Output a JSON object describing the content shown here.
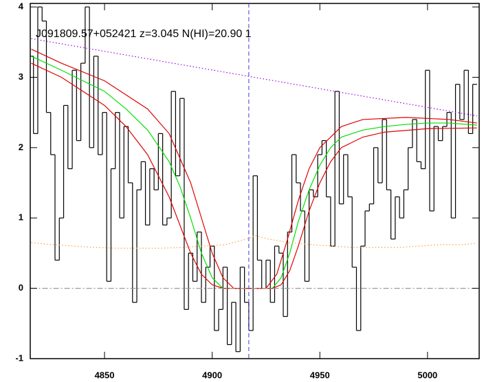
{
  "chart_data": {
    "type": "line",
    "title": "J091809.57+052421 z=3.045 N(HI)=20.90 1",
    "xlim": [
      4815.5,
      5024
    ],
    "ylim": [
      -1,
      4.05
    ],
    "xticks": [
      4850,
      4900,
      4950,
      5000
    ],
    "yticks": [
      -1,
      0,
      1,
      2,
      3,
      4
    ],
    "vline": {
      "x": 4917,
      "color": "#3a3adf",
      "dash": "dashed"
    },
    "series": [
      {
        "color": "#000000",
        "step": true,
        "x": [
          4816,
          4818,
          4820,
          4822,
          4824,
          4826,
          4828,
          4830,
          4832,
          4834,
          4836,
          4838,
          4840,
          4842,
          4844,
          4846,
          4848,
          4850,
          4852,
          4854,
          4856,
          4858,
          4860,
          4862,
          4864,
          4866,
          4868,
          4870,
          4872,
          4874,
          4876,
          4878,
          4880,
          4882,
          4884,
          4886,
          4888,
          4890,
          4892,
          4894,
          4896,
          4898,
          4900,
          4902,
          4904,
          4906,
          4908,
          4910,
          4912,
          4914,
          4916,
          4918,
          4920,
          4922,
          4924,
          4926,
          4928,
          4930,
          4932,
          4934,
          4936,
          4938,
          4940,
          4942,
          4944,
          4946,
          4948,
          4950,
          4952,
          4954,
          4956,
          4958,
          4960,
          4962,
          4964,
          4966,
          4968,
          4970,
          4972,
          4974,
          4976,
          4978,
          4980,
          4982,
          4984,
          4986,
          4988,
          4990,
          4992,
          4994,
          4996,
          4998,
          5000,
          5002,
          5004,
          5006,
          5008,
          5010,
          5012,
          5014,
          5016,
          5018,
          5020,
          5022
        ],
        "values": [
          3.3,
          2.2,
          4.0,
          3.8,
          2.5,
          1.9,
          0.4,
          1.0,
          2.6,
          1.7,
          3.1,
          2.1,
          3.2,
          4.0,
          2.0,
          3.3,
          1.9,
          2.5,
          0.1,
          1.7,
          2.5,
          1.0,
          2.3,
          1.5,
          -0.2,
          1.4,
          1.8,
          0.9,
          1.7,
          1.4,
          2.2,
          0.9,
          1.0,
          2.8,
          1.6,
          2.7,
          -0.3,
          0.5,
          0.1,
          0.8,
          -0.2,
          0.3,
          0.6,
          -0.6,
          -0.3,
          0.3,
          -0.8,
          -0.2,
          -0.9,
          0.3,
          -0.2,
          -0.6,
          1.6,
          0.4,
          0.0,
          0.4,
          -0.2,
          0.6,
          0.5,
          -0.4,
          0.8,
          1.9,
          1.5,
          1.1,
          0.1,
          1.4,
          1.3,
          1.9,
          2.1,
          1.3,
          0.6,
          2.8,
          1.2,
          1.9,
          1.3,
          0.3,
          -0.6,
          0.6,
          1.1,
          1.2,
          2.0,
          1.5,
          2.4,
          1.4,
          0.7,
          1.3,
          1.0,
          1.4,
          2.0,
          2.4,
          1.8,
          1.7,
          3.1,
          1.1,
          2.3,
          2.1,
          2.3,
          2.5,
          1.0,
          2.9,
          2.4,
          3.1,
          2.2,
          2.9
        ]
      },
      {
        "color": "#00e000",
        "x": [
          4816,
          4830,
          4840,
          4850,
          4860,
          4870,
          4880,
          4885,
          4890,
          4895,
          4900,
          4905,
          4910,
          4920,
          4928,
          4932,
          4936,
          4940,
          4945,
          4950,
          4955,
          4960,
          4970,
          4980,
          4990,
          5000,
          5010,
          5023
        ],
        "values": [
          3.3,
          3.1,
          2.95,
          2.8,
          2.55,
          2.25,
          1.8,
          1.45,
          1.0,
          0.5,
          0.15,
          0,
          0,
          0,
          0,
          0.15,
          0.5,
          0.95,
          1.4,
          1.75,
          2.0,
          2.15,
          2.25,
          2.3,
          2.33,
          2.35,
          2.35,
          2.32
        ]
      },
      {
        "color": "#e00000",
        "x": [
          4816,
          4830,
          4850,
          4870,
          4880,
          4890,
          4895,
          4900,
          4905,
          4910,
          4925,
          4930,
          4935,
          4940,
          4945,
          4950,
          4960,
          4970,
          4990,
          5010,
          5023
        ],
        "values": [
          3.4,
          3.2,
          2.95,
          2.55,
          2.2,
          1.5,
          1.0,
          0.5,
          0.15,
          0,
          0,
          0.2,
          0.7,
          1.25,
          1.7,
          2.0,
          2.3,
          2.4,
          2.43,
          2.4,
          2.35
        ]
      },
      {
        "color": "#e00000",
        "x": [
          4816,
          4830,
          4850,
          4860,
          4870,
          4880,
          4885,
          4890,
          4895,
          4900,
          4905,
          4928,
          4932,
          4936,
          4940,
          4945,
          4950,
          4955,
          4960,
          4970,
          4980,
          5000,
          5023
        ],
        "values": [
          3.2,
          3.0,
          2.6,
          2.3,
          1.9,
          1.3,
          0.9,
          0.5,
          0.2,
          0.05,
          0,
          0,
          0.05,
          0.25,
          0.6,
          1.1,
          1.5,
          1.8,
          2.0,
          2.15,
          2.22,
          2.27,
          2.28
        ]
      },
      {
        "color": "#9a00e6",
        "dash": "dotted",
        "x": [
          4816,
          5023
        ],
        "values": [
          3.55,
          2.45
        ]
      },
      {
        "color": "#ff9a40",
        "dash": "dotted",
        "x": [
          4816,
          4826,
          4836,
          4846,
          4856,
          4866,
          4876,
          4886,
          4896,
          4906,
          4916,
          4920,
          4926,
          4936,
          4946,
          4956,
          4966,
          4976,
          4986,
          4996,
          5006,
          5016,
          5023
        ],
        "values": [
          0.65,
          0.62,
          0.6,
          0.58,
          0.57,
          0.57,
          0.57,
          0.58,
          0.6,
          0.62,
          0.7,
          0.75,
          0.7,
          0.65,
          0.62,
          0.6,
          0.58,
          0.58,
          0.58,
          0.6,
          0.62,
          0.62,
          0.64
        ]
      },
      {
        "color": "#999999",
        "dash": "dashdot",
        "x": [
          4816,
          5023
        ],
        "values": [
          0,
          0
        ]
      }
    ]
  }
}
